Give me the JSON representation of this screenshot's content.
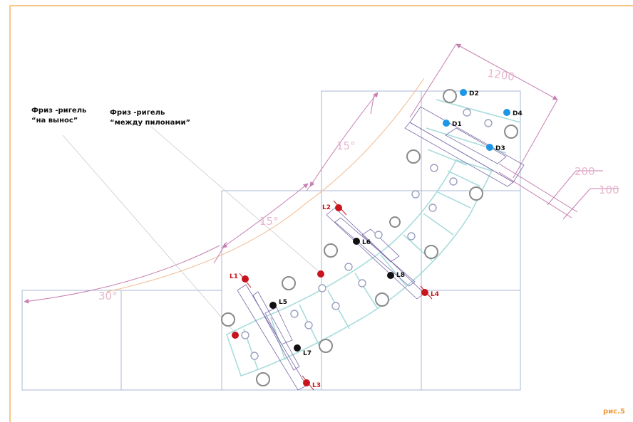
{
  "annotations": {
    "note1_line1": "Фриз -ригель",
    "note1_line2": "“на вынос”",
    "note2_line1": "Фриз -ригель",
    "note2_line2": "“между пилонами”"
  },
  "dimensions": {
    "d1200": "1200",
    "d200": "200",
    "d100": "100",
    "angle15a": "15°",
    "angle15b": "15°",
    "angle30": "30°"
  },
  "figure_label": "рис.5",
  "points": {
    "red": [
      "L1",
      "L2",
      "L3",
      "L4"
    ],
    "black": [
      "L5",
      "L6",
      "L7",
      "L8"
    ],
    "blue": [
      "D1",
      "D2",
      "D3",
      "D4"
    ]
  },
  "colors": {
    "frame": "#f2a23c",
    "grid": "#aab8d6",
    "dimension": "#c77fb1",
    "arc": "#f2b88a",
    "treads": "#a8dcdc",
    "red_point": "#c8141c",
    "black_point": "#111111",
    "blue_point": "#1e96e6",
    "post": "#8a8a8a"
  }
}
